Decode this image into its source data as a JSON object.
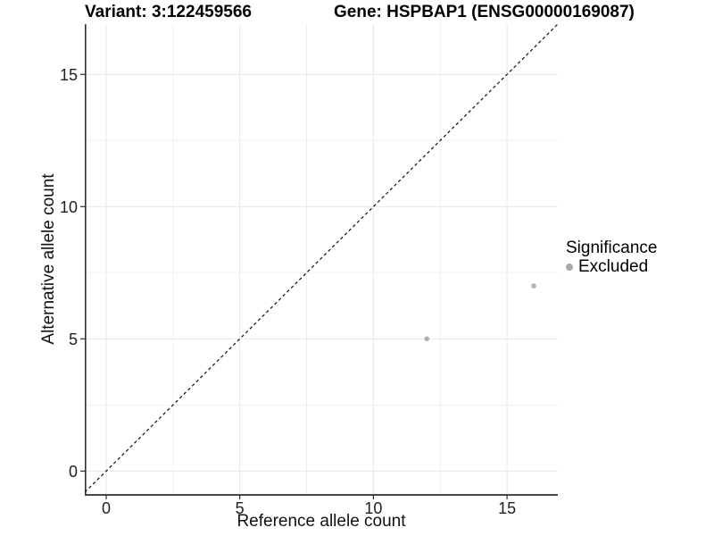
{
  "header": {
    "variant_title": "Variant: 3:122459566",
    "gene_title": "Gene: HSPBAP1 (ENSG00000169087)"
  },
  "chart_data": {
    "type": "scatter",
    "xlabel": "Reference allele count",
    "ylabel": "Alternative allele count",
    "xlim": [
      -0.8,
      16.9
    ],
    "ylim": [
      -0.9,
      16.9
    ],
    "x_ticks": [
      0,
      5,
      10,
      15
    ],
    "y_ticks": [
      0,
      5,
      10,
      15
    ],
    "x_minor_gridlines": [
      2.5,
      7.5,
      12.5
    ],
    "y_minor_gridlines": [
      2.5,
      7.5,
      12.5
    ],
    "grid": true,
    "points": [
      {
        "x": 12,
        "y": 5,
        "series": "Excluded"
      },
      {
        "x": 16,
        "y": 7,
        "series": "Excluded"
      }
    ],
    "identity_line": {
      "slope": 1,
      "intercept": 0,
      "style": "dashed",
      "color": "#202020"
    },
    "legend": {
      "position": "right",
      "title": "Significance",
      "entries": [
        {
          "label": "Excluded",
          "color": "#a9a9a9"
        }
      ]
    },
    "colors": {
      "point": "#b2b2b2",
      "grid_major": "#e7e7e7",
      "grid_minor": "#efefef",
      "axis_line": "#2e2e2e",
      "background": "#ffffff"
    }
  }
}
